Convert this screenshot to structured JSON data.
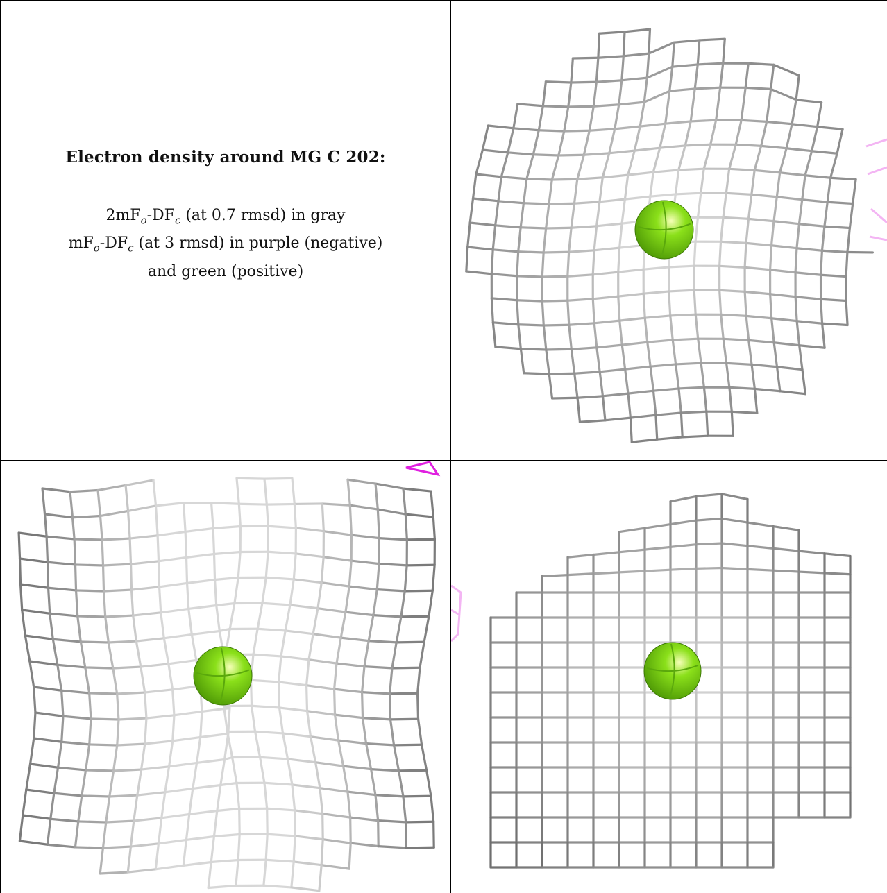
{
  "caption": {
    "title": "Electron density around MG C 202:",
    "line1_a": "2mF",
    "line1_sub1": "o",
    "line1_b": "-DF",
    "line1_sub2": "c",
    "line1_c": " (at 0.7 rmsd) in gray",
    "line2_a": "mF",
    "line2_sub1": "o",
    "line2_b": "-DF",
    "line2_sub2": "c",
    "line2_c": " (at 3 rmsd) in purple (negative)",
    "line3": "and green (positive)"
  },
  "colors": {
    "mesh_dark": "#6e6e6e",
    "mesh_light": "#d4d4d4",
    "atom": "#8be01a",
    "negative": "#e020e0"
  },
  "icons": [
    "magnesium-atom-sphere",
    "electron-density-mesh"
  ]
}
